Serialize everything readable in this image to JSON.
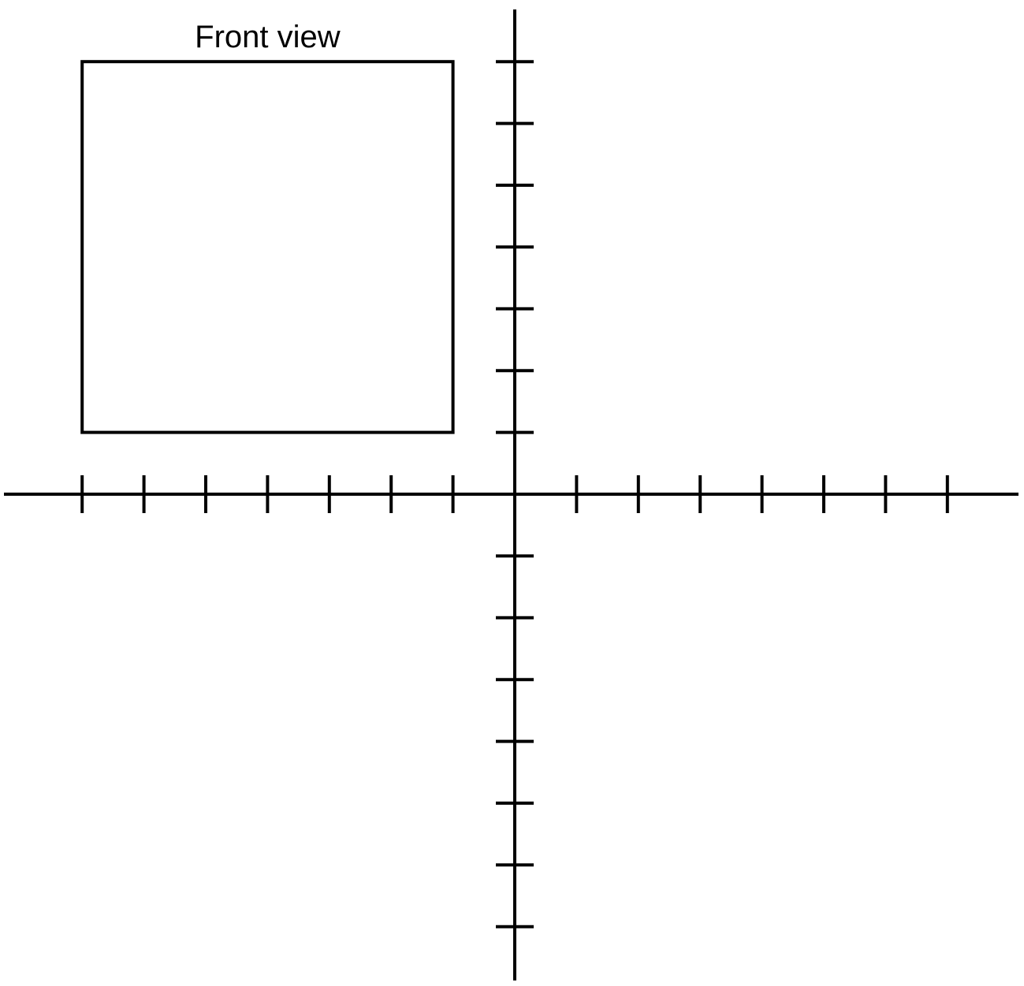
{
  "front_view": {
    "label": "Front view",
    "x_range": [
      -7,
      -1
    ],
    "y_range": [
      1,
      7
    ]
  },
  "axes": {
    "x_ticks": [
      -7,
      -6,
      -5,
      -4,
      -3,
      -2,
      -1,
      1,
      2,
      3,
      4,
      5,
      6,
      7
    ],
    "y_ticks": [
      -7,
      -6,
      -5,
      -4,
      -3,
      -2,
      -1,
      1,
      2,
      3,
      4,
      5,
      6,
      7
    ]
  },
  "colors": {
    "stroke": "#000000",
    "background": "#ffffff"
  }
}
